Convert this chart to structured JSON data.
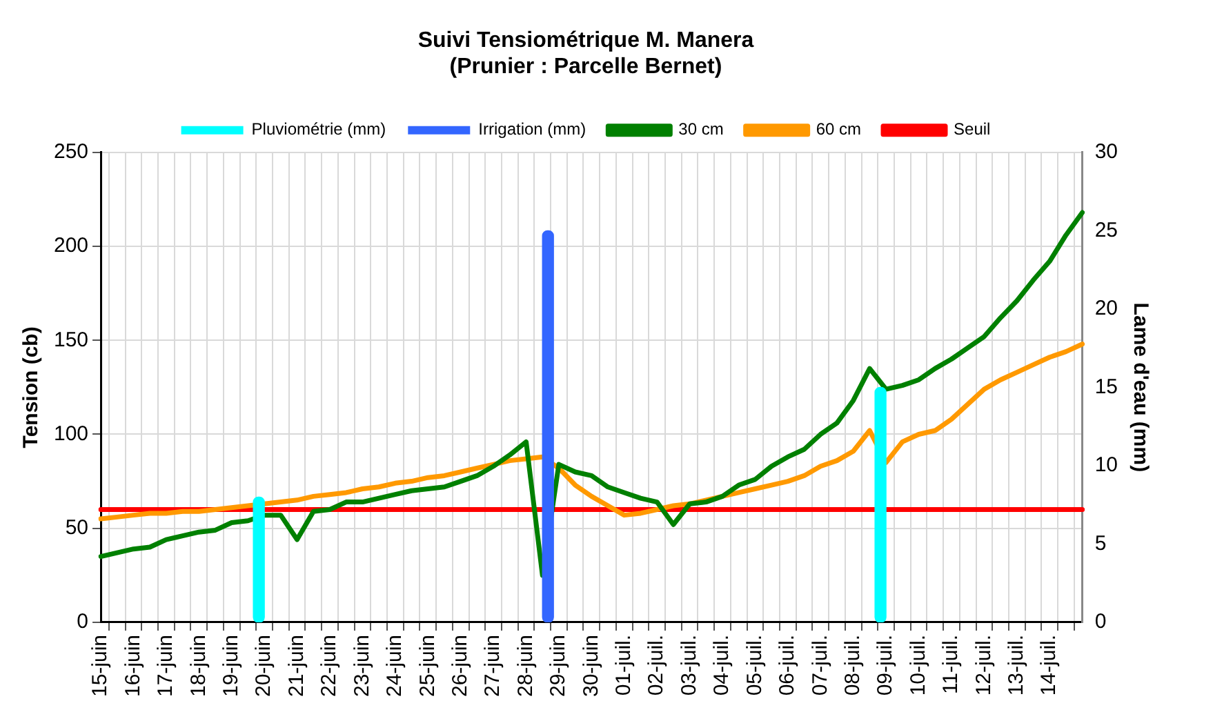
{
  "chart_data": {
    "type": "line",
    "title": "Suivi Tensiométrique M. Manera\n(Prunier : Parcelle Bernet)",
    "ylabel": "Tension (cb)",
    "y2label": "Lame d'eau (mm)",
    "categories": [
      "15-juin",
      null,
      "16-juin",
      null,
      "17-juin",
      null,
      "18-juin",
      null,
      "19-juin",
      null,
      "20-juin",
      null,
      "21-juin",
      null,
      "22-juin",
      null,
      "23-juin",
      null,
      "24-juin",
      null,
      "25-juin",
      null,
      "26-juin",
      null,
      "27-juin",
      null,
      "28-juin",
      null,
      "29-juin",
      null,
      "30-juin",
      null,
      "01-juil.",
      null,
      "02-juil.",
      null,
      "03-juil.",
      null,
      "04-juil.",
      null,
      "05-juil.",
      null,
      "06-juil.",
      null,
      "07-juil.",
      null,
      "08-juil.",
      null,
      "09-juil.",
      null,
      "10-juil.",
      null,
      "11-juil.",
      null,
      "12-juil.",
      null,
      "13-juil.",
      null,
      "14-juil.",
      null,
      null
    ],
    "series": [
      {
        "name": "Pluviométrie (mm)",
        "type": "bar",
        "axis": "y2",
        "color": "#00ffff",
        "values": [
          null,
          null,
          null,
          null,
          null,
          null,
          null,
          null,
          null,
          null,
          8,
          null,
          null,
          null,
          null,
          null,
          null,
          null,
          null,
          null,
          null,
          null,
          null,
          null,
          null,
          null,
          null,
          null,
          null,
          null,
          null,
          null,
          null,
          null,
          null,
          null,
          null,
          null,
          null,
          null,
          null,
          null,
          null,
          null,
          null,
          null,
          null,
          null,
          15,
          null,
          null,
          null,
          null,
          null,
          null,
          null,
          null,
          null,
          null,
          null,
          null
        ]
      },
      {
        "name": "Irrigation (mm)",
        "type": "bar",
        "axis": "y2",
        "color": "#3366ff",
        "values": [
          null,
          null,
          null,
          null,
          null,
          null,
          null,
          null,
          null,
          null,
          null,
          null,
          null,
          null,
          null,
          null,
          null,
          null,
          null,
          null,
          null,
          null,
          null,
          null,
          null,
          null,
          null,
          25,
          null,
          null,
          null,
          null,
          null,
          null,
          null,
          null,
          null,
          null,
          null,
          null,
          null,
          null,
          null,
          null,
          null,
          null,
          null,
          null,
          null,
          null,
          null,
          null,
          null,
          null,
          null,
          null,
          null,
          null,
          null,
          null,
          null
        ]
      },
      {
        "name": "30 cm",
        "color": "#008000",
        "values": [
          35,
          37,
          39,
          40,
          44,
          46,
          48,
          49,
          53,
          54,
          57,
          57,
          44,
          59,
          60,
          64,
          64,
          66,
          68,
          70,
          71,
          72,
          75,
          78,
          83,
          89,
          96,
          25,
          84,
          80,
          78,
          72,
          69,
          66,
          64,
          52,
          63,
          64,
          67,
          73,
          76,
          83,
          88,
          92,
          100,
          106,
          118,
          135,
          124,
          126,
          129,
          135,
          140,
          146,
          152,
          162,
          171,
          182,
          192,
          206,
          218
        ]
      },
      {
        "name": "60 cm",
        "color": "#ff9900",
        "values": [
          55,
          56,
          57,
          58,
          58,
          59,
          59,
          60,
          61,
          62,
          63,
          64,
          65,
          67,
          68,
          69,
          71,
          72,
          74,
          75,
          77,
          78,
          80,
          82,
          84,
          86,
          87,
          88,
          82,
          73,
          67,
          62,
          57,
          58,
          60,
          62,
          63,
          65,
          67,
          69,
          71,
          73,
          75,
          78,
          83,
          86,
          91,
          102,
          85,
          96,
          100,
          102,
          108,
          116,
          124,
          129,
          133,
          137,
          141,
          144,
          148
        ]
      },
      {
        "name": "Seuil",
        "color": "#ff0000",
        "values": [
          60,
          60,
          60,
          60,
          60,
          60,
          60,
          60,
          60,
          60,
          60,
          60,
          60,
          60,
          60,
          60,
          60,
          60,
          60,
          60,
          60,
          60,
          60,
          60,
          60,
          60,
          60,
          60,
          60,
          60,
          60,
          60,
          60,
          60,
          60,
          60,
          60,
          60,
          60,
          60,
          60,
          60,
          60,
          60,
          60,
          60,
          60,
          60,
          60,
          60,
          60,
          60,
          60,
          60,
          60,
          60,
          60,
          60,
          60,
          60,
          60
        ]
      }
    ],
    "ylim": [
      0,
      250
    ],
    "yticks": [
      0,
      50,
      100,
      150,
      200,
      250
    ],
    "y2lim": [
      0,
      30
    ],
    "y2ticks": [
      0,
      5,
      10,
      15,
      20,
      25,
      30
    ],
    "grid": true,
    "legend": "top",
    "marker": "none"
  }
}
